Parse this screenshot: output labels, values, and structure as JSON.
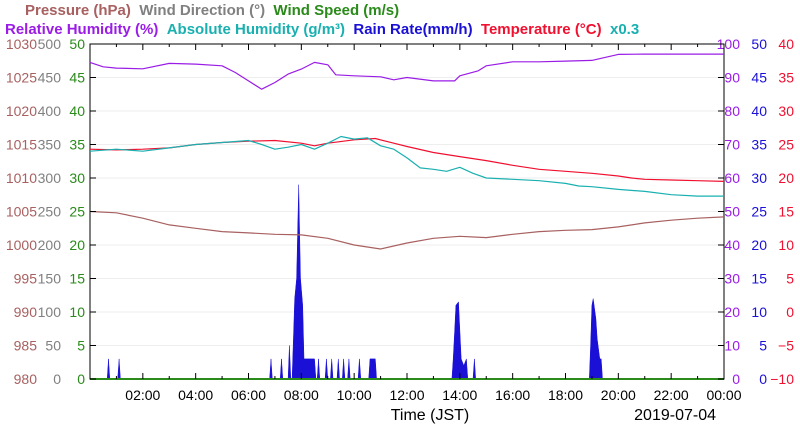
{
  "chart_data": {
    "type": "line",
    "legend": {
      "row1": [
        {
          "text": "Pressure (hPa)",
          "color": "#a86060"
        },
        {
          "text": "Wind Direction (°)",
          "color": "#808080"
        },
        {
          "text": "Wind Speed (m/s)",
          "color": "#2a8a1a"
        }
      ],
      "row2": [
        {
          "text": "Relative Humidity (%)",
          "color": "#9a1ce6"
        },
        {
          "text": "Absolute Humidity (g/m³)",
          "color": "#1ab0b0"
        },
        {
          "text": "Rain Rate(mm/h)",
          "color": "#1a10d6"
        },
        {
          "text": "Temperature (°C)",
          "color": "#f01030"
        },
        {
          "text": "x0.3",
          "color": "#1ab0b0"
        }
      ]
    },
    "xlabel": "Time (JST)",
    "date_label": "2019-07-04",
    "x_range_hours": [
      0,
      24
    ],
    "x_ticks": [
      {
        "h": 2,
        "label": "02:00"
      },
      {
        "h": 4,
        "label": "04:00"
      },
      {
        "h": 6,
        "label": "06:00"
      },
      {
        "h": 8,
        "label": "08:00"
      },
      {
        "h": 10,
        "label": "10:00"
      },
      {
        "h": 12,
        "label": "12:00"
      },
      {
        "h": 14,
        "label": "14:00"
      },
      {
        "h": 16,
        "label": "16:00"
      },
      {
        "h": 18,
        "label": "18:00"
      },
      {
        "h": 20,
        "label": "20:00"
      },
      {
        "h": 22,
        "label": "22:00"
      },
      {
        "h": 24,
        "label": "00:00"
      }
    ],
    "axes": [
      {
        "name": "Pressure",
        "side": "left",
        "color": "#a86060",
        "range": [
          980,
          1030
        ],
        "ticks": [
          "980",
          "985",
          "990",
          "995",
          "1000",
          "1005",
          "1010",
          "1015",
          "1020",
          "1025",
          "1030"
        ]
      },
      {
        "name": "Wind Direction",
        "side": "left",
        "color": "#808080",
        "range": [
          0,
          500
        ],
        "ticks": [
          "0",
          "50",
          "100",
          "150",
          "200",
          "250",
          "300",
          "350",
          "400",
          "450",
          "500"
        ]
      },
      {
        "name": "Wind Speed",
        "side": "left",
        "color": "#2a8a1a",
        "range": [
          0,
          50
        ],
        "ticks": [
          "0",
          "5",
          "10",
          "15",
          "20",
          "25",
          "30",
          "35",
          "40",
          "45",
          "50"
        ]
      },
      {
        "name": "Relative Humidity",
        "side": "right",
        "color": "#9a1ce6",
        "range": [
          0,
          100
        ],
        "ticks": [
          "0",
          "10",
          "20",
          "30",
          "40",
          "50",
          "60",
          "70",
          "80",
          "90",
          "100"
        ]
      },
      {
        "name": "Rain Rate",
        "side": "right",
        "color": "#1a10d6",
        "range": [
          0,
          50
        ],
        "ticks": [
          "0",
          "5",
          "10",
          "15",
          "20",
          "25",
          "30",
          "35",
          "40",
          "45",
          "50"
        ]
      },
      {
        "name": "Temperature",
        "side": "right",
        "color": "#f01030",
        "range": [
          -10,
          40
        ],
        "ticks": [
          "−10",
          "−5",
          "0",
          "5",
          "10",
          "15",
          "20",
          "25",
          "30",
          "35",
          "40"
        ]
      }
    ],
    "series": [
      {
        "name": "Temperature",
        "color": "#f01030",
        "axis_range": [
          -10,
          40
        ],
        "points": [
          [
            0,
            24.3
          ],
          [
            1,
            24.2
          ],
          [
            2,
            24.3
          ],
          [
            3,
            24.5
          ],
          [
            4,
            25.0
          ],
          [
            5,
            25.3
          ],
          [
            6,
            25.5
          ],
          [
            7,
            25.6
          ],
          [
            8,
            25.2
          ],
          [
            8.5,
            24.8
          ],
          [
            9,
            25.2
          ],
          [
            10,
            25.7
          ],
          [
            10.8,
            25.9
          ],
          [
            11.5,
            25.2
          ],
          [
            12,
            24.7
          ],
          [
            13,
            23.8
          ],
          [
            14,
            23.2
          ],
          [
            15,
            22.6
          ],
          [
            16,
            21.9
          ],
          [
            17,
            21.3
          ],
          [
            18,
            21.0
          ],
          [
            19,
            20.7
          ],
          [
            20,
            20.3
          ],
          [
            20.5,
            20.0
          ],
          [
            21,
            19.8
          ],
          [
            22,
            19.7
          ],
          [
            23,
            19.6
          ],
          [
            24,
            19.5
          ]
        ]
      },
      {
        "name": "Absolute Humidity",
        "color": "#1ab0b0",
        "axis_range": [
          0,
          50
        ],
        "points": [
          [
            0,
            34.0
          ],
          [
            1,
            34.3
          ],
          [
            2,
            34.0
          ],
          [
            3,
            34.5
          ],
          [
            4,
            35.0
          ],
          [
            5,
            35.3
          ],
          [
            6,
            35.6
          ],
          [
            6.5,
            35.0
          ],
          [
            7,
            34.3
          ],
          [
            7.5,
            34.6
          ],
          [
            8,
            35.0
          ],
          [
            8.5,
            34.3
          ],
          [
            9,
            35.2
          ],
          [
            9.5,
            36.2
          ],
          [
            10,
            35.8
          ],
          [
            10.5,
            36.0
          ],
          [
            11,
            34.8
          ],
          [
            11.5,
            34.3
          ],
          [
            12,
            33.0
          ],
          [
            12.5,
            31.5
          ],
          [
            13,
            31.3
          ],
          [
            13.5,
            31.0
          ],
          [
            14,
            31.6
          ],
          [
            14.5,
            30.7
          ],
          [
            15,
            30.0
          ],
          [
            16,
            29.8
          ],
          [
            17,
            29.6
          ],
          [
            18,
            29.2
          ],
          [
            18.5,
            28.8
          ],
          [
            19,
            28.7
          ],
          [
            20,
            28.3
          ],
          [
            21,
            28.0
          ],
          [
            22,
            27.5
          ],
          [
            23,
            27.3
          ],
          [
            24,
            27.3
          ]
        ]
      },
      {
        "name": "Relative Humidity",
        "color": "#9a1ce6",
        "axis_range": [
          0,
          100
        ],
        "points": [
          [
            0,
            94.5
          ],
          [
            0.5,
            93.2
          ],
          [
            1,
            92.8
          ],
          [
            2,
            92.6
          ],
          [
            3,
            94.2
          ],
          [
            4,
            94.0
          ],
          [
            5,
            93.5
          ],
          [
            5.5,
            91.5
          ],
          [
            6,
            89.0
          ],
          [
            6.5,
            86.5
          ],
          [
            7,
            88.5
          ],
          [
            7.5,
            91.0
          ],
          [
            8,
            92.5
          ],
          [
            8.5,
            94.5
          ],
          [
            9,
            93.8
          ],
          [
            9.3,
            90.8
          ],
          [
            10,
            90.5
          ],
          [
            11,
            90.2
          ],
          [
            11.5,
            89.3
          ],
          [
            12,
            90.0
          ],
          [
            13,
            89.0
          ],
          [
            13.8,
            89.0
          ],
          [
            14,
            90.5
          ],
          [
            14.7,
            92.0
          ],
          [
            15,
            93.5
          ],
          [
            16,
            94.7
          ],
          [
            17,
            94.7
          ],
          [
            18,
            94.9
          ],
          [
            19,
            95.1
          ],
          [
            19.5,
            96.0
          ],
          [
            20,
            96.9
          ],
          [
            21,
            97.0
          ],
          [
            22,
            97.0
          ],
          [
            23,
            97.0
          ],
          [
            24,
            97.0
          ]
        ]
      },
      {
        "name": "Pressure",
        "color": "#a86060",
        "axis_range": [
          980,
          1030
        ],
        "points": [
          [
            0,
            1005.0
          ],
          [
            1,
            1004.8
          ],
          [
            2,
            1004.0
          ],
          [
            3,
            1003.0
          ],
          [
            4,
            1002.5
          ],
          [
            5,
            1002.0
          ],
          [
            6,
            1001.8
          ],
          [
            7,
            1001.6
          ],
          [
            8,
            1001.5
          ],
          [
            9,
            1001.0
          ],
          [
            10,
            1000.0
          ],
          [
            11,
            999.4
          ],
          [
            12,
            1000.3
          ],
          [
            13,
            1001.0
          ],
          [
            14,
            1001.3
          ],
          [
            15,
            1001.1
          ],
          [
            16,
            1001.6
          ],
          [
            17,
            1002.0
          ],
          [
            18,
            1002.2
          ],
          [
            19,
            1002.3
          ],
          [
            20,
            1002.7
          ],
          [
            21,
            1003.3
          ],
          [
            22,
            1003.7
          ],
          [
            23,
            1004.0
          ],
          [
            24,
            1004.2
          ]
        ]
      },
      {
        "name": "Wind Speed",
        "color": "#2a8a1a",
        "axis_range": [
          0,
          50
        ],
        "points": [
          [
            0,
            0
          ],
          [
            24,
            0
          ]
        ]
      }
    ],
    "rain": {
      "color": "#1a10d6",
      "axis_range": [
        0,
        50
      ],
      "points": [
        [
          0,
          0
        ],
        [
          0.65,
          0
        ],
        [
          0.7,
          3.0
        ],
        [
          0.75,
          0
        ],
        [
          1.05,
          0
        ],
        [
          1.1,
          3.0
        ],
        [
          1.15,
          0
        ],
        [
          6.8,
          0
        ],
        [
          6.85,
          3.0
        ],
        [
          6.9,
          0
        ],
        [
          7.2,
          0
        ],
        [
          7.25,
          3.0
        ],
        [
          7.3,
          0
        ],
        [
          7.5,
          0
        ],
        [
          7.55,
          5.0
        ],
        [
          7.6,
          0
        ],
        [
          7.65,
          0
        ],
        [
          7.7,
          6.0
        ],
        [
          7.75,
          12.0
        ],
        [
          7.82,
          15.0
        ],
        [
          7.9,
          29.0
        ],
        [
          7.97,
          15.0
        ],
        [
          8.05,
          11.0
        ],
        [
          8.1,
          3.0
        ],
        [
          8.5,
          3.0
        ],
        [
          8.55,
          0
        ],
        [
          8.6,
          0
        ],
        [
          8.65,
          3.0
        ],
        [
          8.7,
          0
        ],
        [
          8.9,
          0
        ],
        [
          8.95,
          3.0
        ],
        [
          9.0,
          0
        ],
        [
          9.1,
          0
        ],
        [
          9.15,
          3.0
        ],
        [
          9.2,
          0
        ],
        [
          9.35,
          0
        ],
        [
          9.4,
          3.0
        ],
        [
          9.45,
          0
        ],
        [
          9.55,
          0
        ],
        [
          9.6,
          3.0
        ],
        [
          9.65,
          0
        ],
        [
          9.75,
          0
        ],
        [
          9.8,
          3.0
        ],
        [
          9.85,
          0
        ],
        [
          10.15,
          0
        ],
        [
          10.2,
          3.0
        ],
        [
          10.25,
          0
        ],
        [
          10.55,
          0
        ],
        [
          10.6,
          3.0
        ],
        [
          10.8,
          3.0
        ],
        [
          10.85,
          0
        ],
        [
          13.7,
          0
        ],
        [
          13.75,
          3.0
        ],
        [
          13.8,
          7.0
        ],
        [
          13.85,
          11.0
        ],
        [
          13.95,
          11.5
        ],
        [
          14.05,
          3.0
        ],
        [
          14.15,
          2.0
        ],
        [
          14.25,
          3.0
        ],
        [
          14.3,
          0
        ],
        [
          14.5,
          0
        ],
        [
          14.55,
          3.0
        ],
        [
          14.6,
          0
        ],
        [
          18.9,
          0
        ],
        [
          18.95,
          5.0
        ],
        [
          19.0,
          11.0
        ],
        [
          19.05,
          12.0
        ],
        [
          19.15,
          9.0
        ],
        [
          19.2,
          6.0
        ],
        [
          19.3,
          3.0
        ],
        [
          19.35,
          3.0
        ],
        [
          19.4,
          0
        ],
        [
          24,
          0
        ]
      ]
    }
  }
}
